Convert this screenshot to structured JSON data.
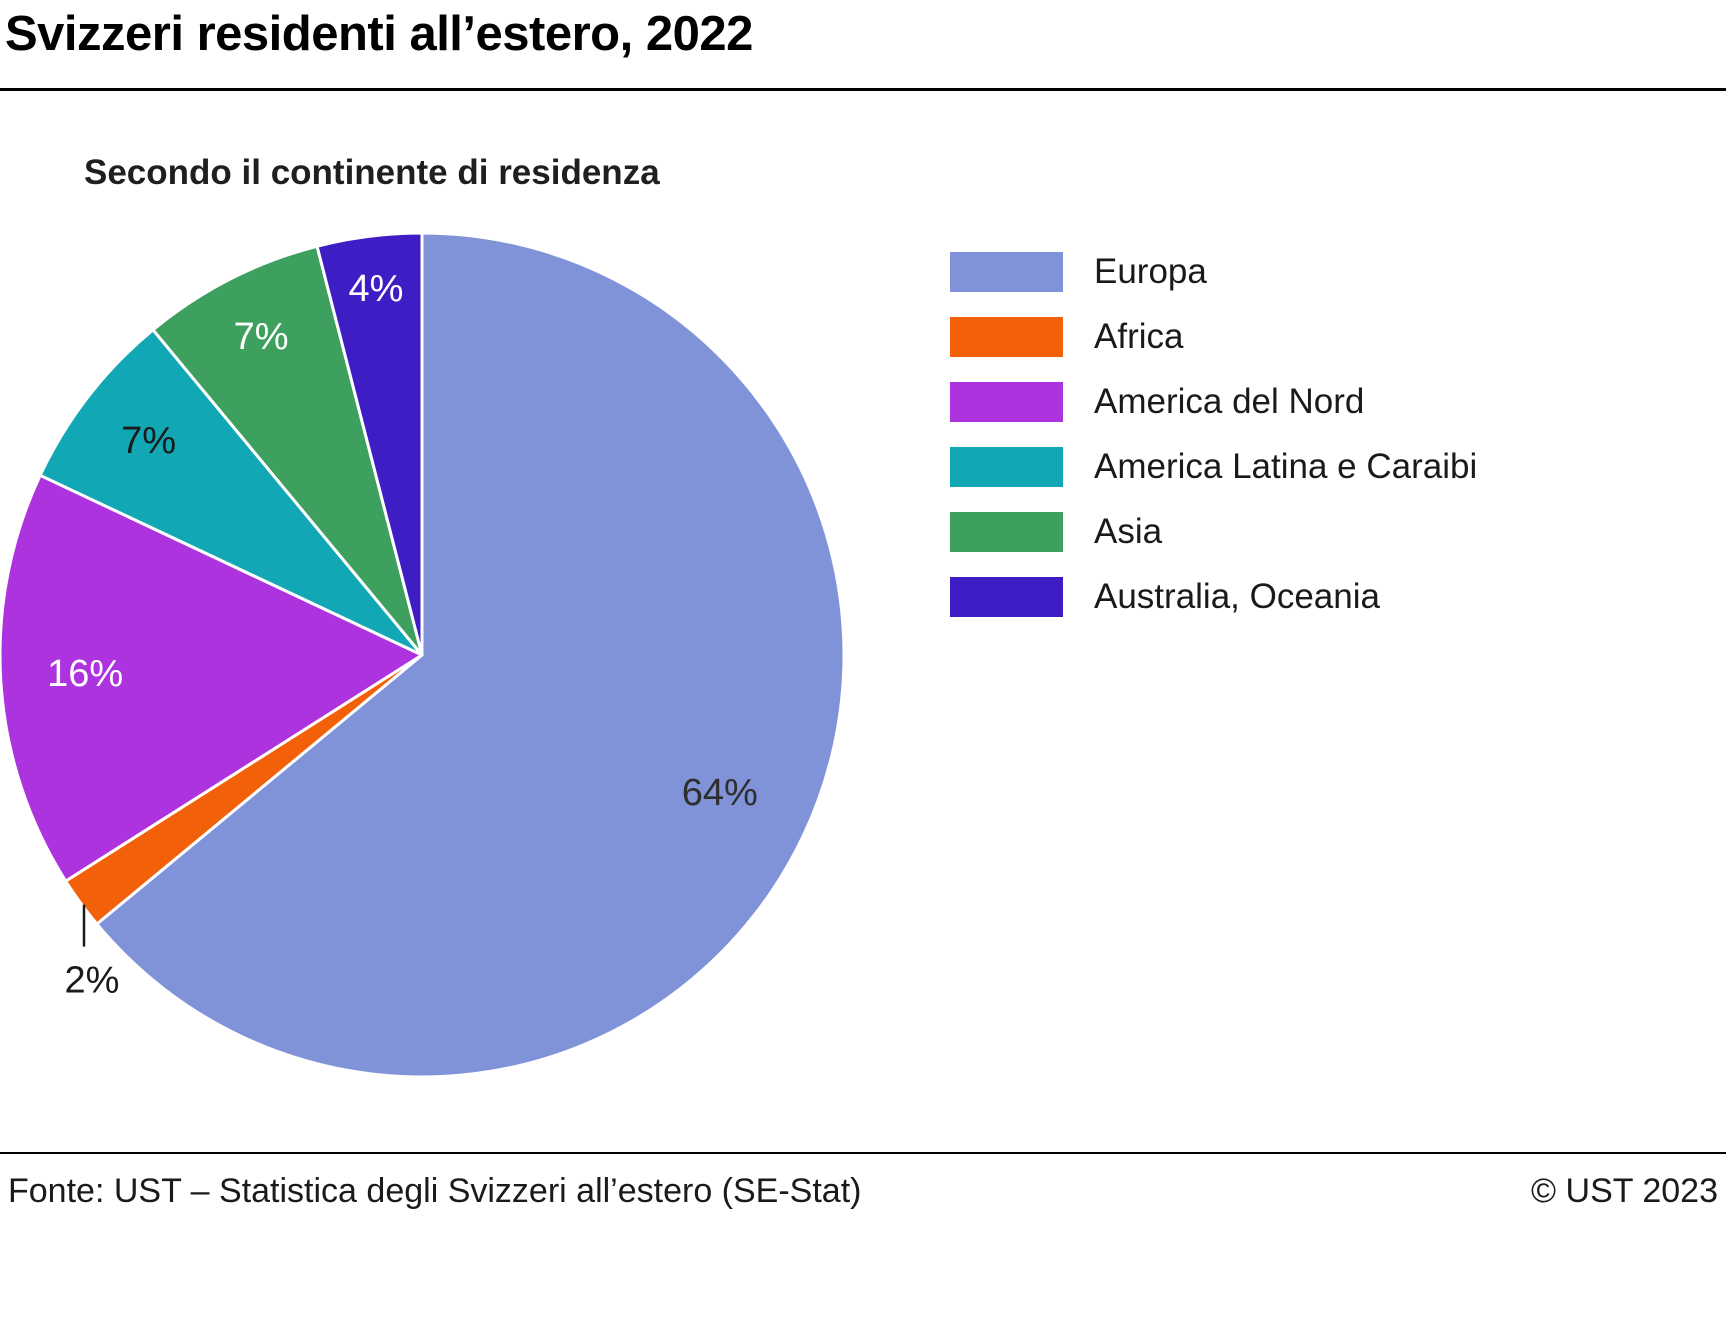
{
  "header": {
    "title": "Svizzeri residenti all’estero, 2022"
  },
  "subtitle": "Secondo il continente di residenza",
  "chart_data": {
    "type": "pie",
    "title": "Svizzeri residenti all’estero, 2022",
    "subtitle": "Secondo il continente di residenza",
    "unit": "%",
    "start_angle_deg": 0,
    "direction": "clockwise",
    "legend_position": "right",
    "slices": [
      {
        "label": "Europa",
        "value": 64,
        "display": "64%",
        "color": "#8093d8",
        "label_color": "#2e2e2e",
        "label_position": "inside",
        "label_radius": 0.78
      },
      {
        "label": "Africa",
        "value": 2,
        "display": "2%",
        "color": "#f2600a",
        "label_color": "#1a1a1a",
        "label_position": "outside",
        "label_radius": 1.0
      },
      {
        "label": "America del Nord",
        "value": 16,
        "display": "16%",
        "color": "#ad33de",
        "label_color": "#ffffff",
        "label_position": "inside",
        "label_radius": 0.8
      },
      {
        "label": "America Latina e Caraibi",
        "value": 7,
        "display": "7%",
        "color": "#12a7b5",
        "label_color": "#1a1a1a",
        "label_position": "inside",
        "label_radius": 0.82
      },
      {
        "label": "Asia",
        "value": 7,
        "display": "7%",
        "color": "#3da05f",
        "label_color": "#ffffff",
        "label_position": "inside",
        "label_radius": 0.84
      },
      {
        "label": "Australia, Oceania",
        "value": 4,
        "display": "4%",
        "color": "#3f1dc4",
        "label_color": "#ffffff",
        "label_position": "inside",
        "label_radius": 0.87
      }
    ]
  },
  "footer": {
    "source": "Fonte: UST – Statistica degli Svizzeri all’estero (SE-Stat)",
    "copyright": "© UST 2023"
  }
}
